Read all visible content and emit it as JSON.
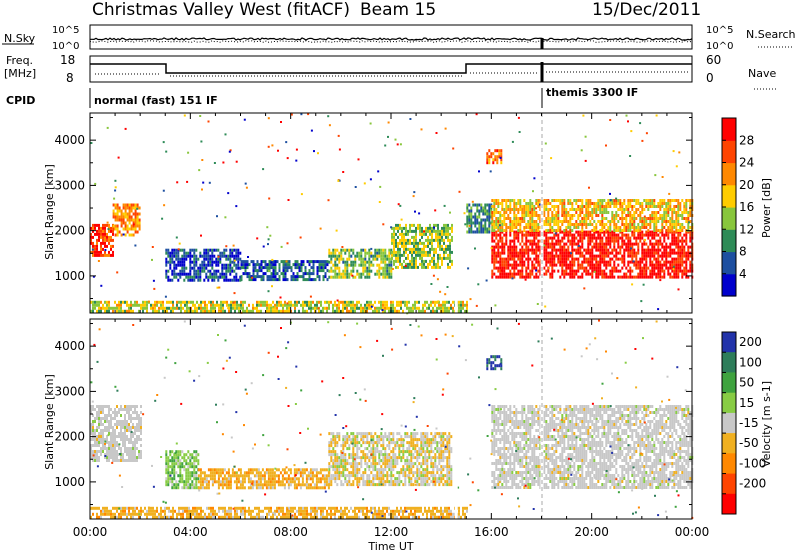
{
  "header": {
    "title": "Christmas Valley West (fitACF)",
    "beam": "Beam 15",
    "date": "15/Dec/2011"
  },
  "info_panels": {
    "noise": {
      "left_label": "N.Sky",
      "right_label": "N.Search",
      "left_ticks": [
        "10^5",
        "10^0"
      ],
      "right_ticks": [
        "10^5",
        "10^0"
      ]
    },
    "freq": {
      "left_label_1": "Freq.",
      "left_label_2": "[MHz]",
      "right_label": "Nave",
      "left_ticks": [
        "18",
        "8"
      ],
      "right_ticks": [
        "60",
        "0"
      ]
    },
    "cpid": {
      "label": "CPID",
      "modes": [
        "normal (fast) 151 IF",
        "themis 3300 IF"
      ]
    }
  },
  "chart_data": [
    {
      "type": "heatmap",
      "name": "power",
      "xlabel": "",
      "ylabel": "Slant Range [km]",
      "xlim_hours": [
        0,
        24
      ],
      "ylim_km": [
        180,
        4600
      ],
      "yticks": [
        1000,
        2000,
        3000,
        4000
      ],
      "colorbar": {
        "label": "Power [dB]",
        "ticks": [
          "4",
          "8",
          "12",
          "16",
          "20",
          "24",
          "28"
        ],
        "range": [
          0,
          30
        ],
        "colors": [
          "#0000cc",
          "#1d4fa0",
          "#2e8b57",
          "#88c63c",
          "#ffcc00",
          "#ff8800",
          "#ff4400",
          "#ff0000"
        ]
      },
      "regions": [
        {
          "t": [
            0.0,
            0.9
          ],
          "r": [
            1450,
            2150
          ],
          "level": 0.85
        },
        {
          "t": [
            0.9,
            2.0
          ],
          "r": [
            1900,
            2600
          ],
          "level": 0.7
        },
        {
          "t": [
            3.0,
            6.0
          ],
          "r": [
            900,
            1600
          ],
          "level": 0.15
        },
        {
          "t": [
            6.0,
            9.5
          ],
          "r": [
            900,
            1350
          ],
          "level": 0.2
        },
        {
          "t": [
            9.5,
            12.0
          ],
          "r": [
            950,
            1600
          ],
          "level": 0.4
        },
        {
          "t": [
            12.0,
            14.4
          ],
          "r": [
            1200,
            2150
          ],
          "level": 0.45
        },
        {
          "t": [
            15.0,
            16.0
          ],
          "r": [
            2000,
            2600
          ],
          "level": 0.3
        },
        {
          "t": [
            15.8,
            16.4
          ],
          "r": [
            3500,
            3800
          ],
          "level": 0.75
        },
        {
          "t": [
            16.0,
            24.0
          ],
          "r": [
            1000,
            2000
          ],
          "level": 0.95
        },
        {
          "t": [
            16.0,
            24.0
          ],
          "r": [
            2000,
            2700
          ],
          "level": 0.6
        },
        {
          "t": [
            0.0,
            15.0
          ],
          "r": [
            250,
            450
          ],
          "level": 0.5
        }
      ]
    },
    {
      "type": "heatmap",
      "name": "velocity",
      "xlabel": "Time UT",
      "ylabel": "Slant Range [km]",
      "xlim_hours": [
        0,
        24
      ],
      "ylim_km": [
        180,
        4600
      ],
      "xticks": [
        "00:00",
        "04:00",
        "08:00",
        "12:00",
        "16:00",
        "20:00",
        "00:00"
      ],
      "yticks": [
        1000,
        2000,
        3000,
        4000
      ],
      "colorbar": {
        "label": "Velocity [m s-1]",
        "ticks": [
          "200",
          "100",
          "50",
          "15",
          "-15",
          "-50",
          "-100",
          "-200"
        ],
        "colors": [
          "#2233aa",
          "#2e7d5a",
          "#3fa33f",
          "#88cc44",
          "#c8c8c8",
          "#f0b020",
          "#ff8800",
          "#ff4400",
          "#ff0000"
        ]
      },
      "regions": [
        {
          "t": [
            0.0,
            2.0
          ],
          "r": [
            1500,
            2700
          ],
          "class": "near_zero"
        },
        {
          "t": [
            3.0,
            4.3
          ],
          "r": [
            900,
            1700
          ],
          "class": "positive_50"
        },
        {
          "t": [
            4.3,
            9.5
          ],
          "r": [
            850,
            1300
          ],
          "class": "negative_50"
        },
        {
          "t": [
            9.5,
            14.4
          ],
          "r": [
            950,
            2100
          ],
          "class": "mixed"
        },
        {
          "t": [
            15.8,
            16.4
          ],
          "r": [
            3500,
            3800
          ],
          "class": "positive_200"
        },
        {
          "t": [
            16.0,
            24.0
          ],
          "r": [
            900,
            2700
          ],
          "class": "near_zero"
        },
        {
          "t": [
            0.0,
            15.0
          ],
          "r": [
            250,
            450
          ],
          "class": "negative_50"
        }
      ]
    }
  ],
  "colors": {
    "axis": "#000000",
    "cpid_change_line": "#aaaaaa",
    "gap_white": "#ffffff"
  }
}
